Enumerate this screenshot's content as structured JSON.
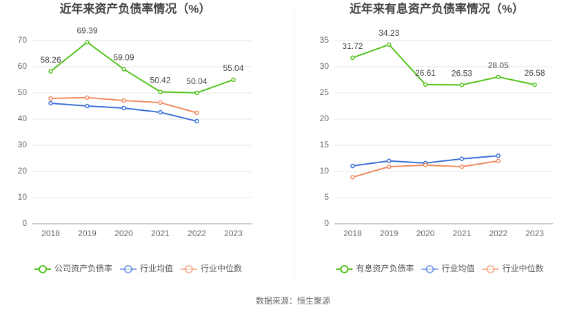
{
  "chart_data": [
    {
      "type": "line",
      "title": "近年来资产负债率情况（%）",
      "categories": [
        "2018",
        "2019",
        "2020",
        "2021",
        "2022",
        "2023"
      ],
      "ylim": [
        0,
        70
      ],
      "yticks": [
        0,
        10,
        20,
        30,
        40,
        50,
        60,
        70
      ],
      "grid": true,
      "series": [
        {
          "name": "公司资产负债率",
          "color": "#52c41a",
          "values": [
            58.26,
            69.39,
            59.09,
            50.42,
            50.04,
            55.04
          ],
          "labels": true
        },
        {
          "name": "行业均值",
          "color": "#3a6fd8",
          "values": [
            46.05,
            45.0,
            44.2,
            42.6,
            39.2,
            null
          ]
        },
        {
          "name": "行业中位数",
          "color": "#f08a5d",
          "values": [
            47.9,
            48.2,
            47.1,
            46.3,
            42.4,
            null
          ]
        }
      ]
    },
    {
      "type": "line",
      "title": "近年来有息资产负债率情况（%）",
      "categories": [
        "2018",
        "2019",
        "2020",
        "2021",
        "2022",
        "2023"
      ],
      "ylim": [
        0,
        35
      ],
      "yticks": [
        0,
        5,
        10,
        15,
        20,
        25,
        30,
        35
      ],
      "grid": true,
      "series": [
        {
          "name": "有息资产负债率",
          "color": "#52c41a",
          "values": [
            31.72,
            34.23,
            26.61,
            26.53,
            28.05,
            26.58
          ],
          "labels": true
        },
        {
          "name": "行业均值",
          "color": "#3a6fd8",
          "values": [
            11.05,
            12.0,
            11.6,
            12.4,
            13.0,
            null
          ]
        },
        {
          "name": "行业中位数",
          "color": "#f08a5d",
          "values": [
            8.9,
            10.9,
            11.2,
            10.9,
            12.0,
            null
          ]
        }
      ]
    }
  ],
  "source": "数据来源：恒生聚源"
}
